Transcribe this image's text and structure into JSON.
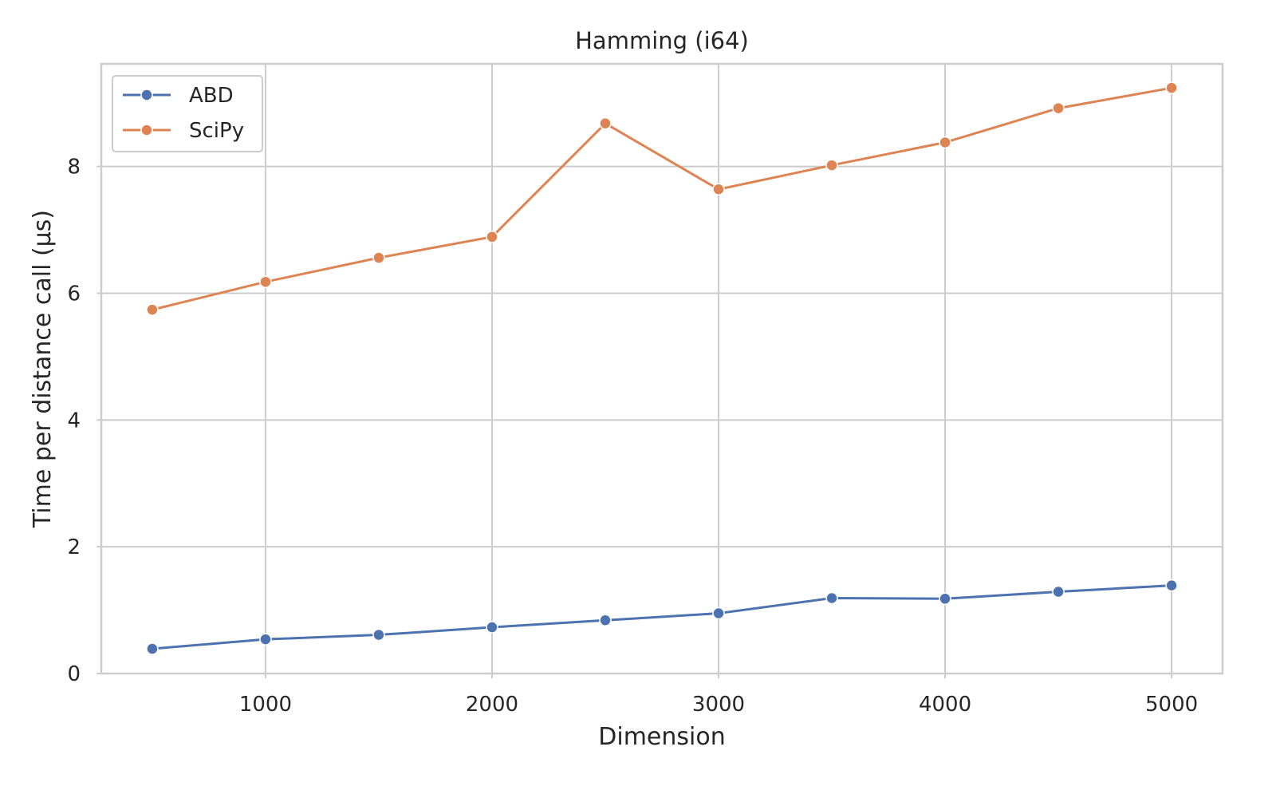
{
  "chart_data": {
    "type": "line",
    "title": "Hamming (i64)",
    "xlabel": "Dimension",
    "ylabel": "Time per distance call (µs)",
    "x": [
      500,
      1000,
      1500,
      2000,
      2500,
      3000,
      3500,
      4000,
      4500,
      5000
    ],
    "xlim": [
      275,
      5225
    ],
    "ylim": [
      0,
      9.62
    ],
    "xticks": [
      1000,
      2000,
      3000,
      4000,
      5000
    ],
    "yticks": [
      0,
      2,
      4,
      6,
      8
    ],
    "xtick_labels": [
      "1000",
      "2000",
      "3000",
      "4000",
      "5000"
    ],
    "ytick_labels": [
      "0",
      "2",
      "4",
      "6",
      "8"
    ],
    "grid": true,
    "legend_position": "top-left",
    "series": [
      {
        "name": "ABD",
        "color": "#4c72b0",
        "marker": "circle",
        "values": [
          0.39,
          0.54,
          0.61,
          0.73,
          0.84,
          0.95,
          1.19,
          1.18,
          1.29,
          1.39
        ]
      },
      {
        "name": "SciPy",
        "color": "#dd8452",
        "marker": "circle",
        "values": [
          5.74,
          6.18,
          6.56,
          6.89,
          8.68,
          7.64,
          8.02,
          8.38,
          8.92,
          9.24
        ]
      }
    ]
  }
}
